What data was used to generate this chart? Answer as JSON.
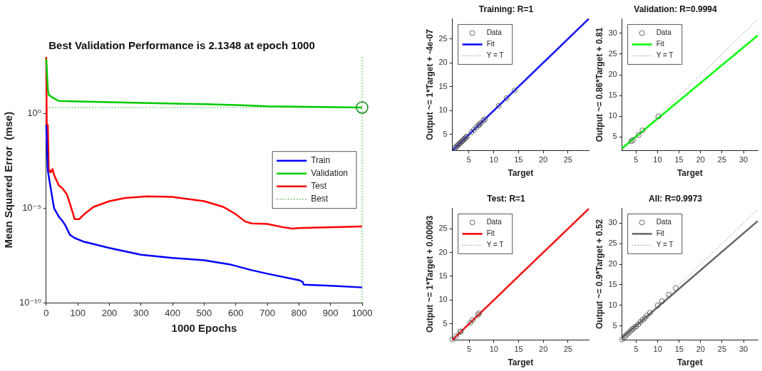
{
  "chart_data": [
    {
      "type": "line",
      "title": "Best Validation Performance is 2.1348 at epoch 1000",
      "xlabel": "1000 Epochs",
      "ylabel": "Mean Squared Error  (mse)",
      "log": "y",
      "xlim": [
        0,
        1000
      ],
      "xticks": [
        0,
        100,
        200,
        300,
        400,
        500,
        600,
        700,
        800,
        900,
        1000
      ],
      "ylim": [
        1e-10,
        1000
      ],
      "yticks": [
        {
          "value": 1e-10,
          "label": "10⁻¹⁰"
        },
        {
          "value": 1e-05,
          "label": "10⁻⁵"
        },
        {
          "value": 1,
          "label": "10⁰"
        }
      ],
      "legend": "right",
      "ref_lines": [
        {
          "axis": "y",
          "value": 2.1348,
          "color": "#22aa22",
          "line_style": "dotted"
        },
        {
          "axis": "x",
          "value": 1000,
          "color": "#22aa22",
          "line_style": "dotted"
        }
      ],
      "series": [
        {
          "name": "Train",
          "color": "#0000ff",
          "marker": "none",
          "x": [
            0,
            5,
            10,
            20,
            25,
            40,
            50,
            60,
            75,
            90,
            120,
            200,
            300,
            400,
            500,
            580,
            650,
            700,
            800,
            812,
            815,
            900,
            1000
          ],
          "values": [
            0.25,
            0.001,
            0.0003,
            3e-05,
            1e-05,
            3.6e-06,
            2.3e-06,
            1.3e-06,
            4e-07,
            2.7e-07,
            1.7e-07,
            8e-08,
            3.5e-08,
            2.4e-08,
            1.8e-08,
            1.1e-08,
            5.4e-09,
            3.5e-09,
            1.6e-09,
            1.3e-09,
            9.3e-10,
            8.1e-10,
            6.6e-10
          ]
        },
        {
          "name": "Validation",
          "color": "#00cc00",
          "marker": "none",
          "x": [
            0,
            5,
            8,
            20,
            40,
            100,
            300,
            500,
            600,
            700,
            1000
          ],
          "values": [
            800,
            20,
            10,
            7.2,
            4.7,
            4.4,
            3.7,
            3.2,
            2.9,
            2.5,
            2.1348
          ]
        },
        {
          "name": "Test",
          "color": "#ff0000",
          "marker": "none",
          "x": [
            0,
            2,
            5,
            8,
            12,
            15,
            20,
            25,
            30,
            40,
            50,
            65,
            75,
            90,
            105,
            120,
            150,
            200,
            250,
            320,
            400,
            500,
            560,
            600,
            630,
            650,
            700,
            750,
            780,
            800,
            1000
          ],
          "values": [
            1000,
            0.045,
            0.25,
            0.0008,
            0.001,
            0.0008,
            0.0012,
            0.00058,
            0.00037,
            0.00016,
            0.00012,
            5.7e-05,
            1.8e-05,
            2.7e-06,
            2.7e-06,
            4.9e-06,
            1.2e-05,
            2.4e-05,
            3.5e-05,
            4.3e-05,
            4e-05,
            2.4e-05,
            1.2e-05,
            4.9e-06,
            2e-06,
            1.6e-06,
            1.5e-06,
            1e-06,
            8.5e-07,
            9e-07,
            1.1e-06
          ]
        },
        {
          "name": "Best",
          "type": "scatter",
          "color": "#118811",
          "marker": "circle",
          "line_style": "dotted",
          "x": [
            1000
          ],
          "values": [
            2.1348
          ]
        }
      ]
    },
    {
      "type": "scatter",
      "title": "Training: R=1",
      "xlabel": "Target",
      "ylabel": "Output ~= 1*Target + -4e-07",
      "xlim": [
        1.65,
        29.2
      ],
      "xticks": [
        5,
        10,
        15,
        20,
        25
      ],
      "ylim": [
        1.65,
        29.2
      ],
      "yticks": [
        5,
        10,
        15,
        20,
        25
      ],
      "legend": "top left",
      "series": [
        {
          "name": "Data",
          "color": "#444444",
          "marker": "circle",
          "x": [
            2.2,
            2.4,
            2.6,
            2.8,
            3.0,
            3.2,
            3.4,
            3.6,
            3.8,
            4.0,
            4.2,
            4.4,
            4.6,
            5.5,
            6.0,
            6.5,
            6.9,
            7.1,
            7.4,
            7.9,
            8.2,
            11.0,
            12.6,
            14.2
          ],
          "values": [
            2.2,
            2.4,
            2.6,
            2.8,
            3.0,
            3.2,
            3.4,
            3.6,
            3.8,
            4.0,
            4.2,
            4.4,
            4.6,
            5.5,
            6.0,
            6.5,
            6.9,
            7.1,
            7.4,
            7.9,
            8.2,
            11.0,
            12.6,
            14.2
          ]
        },
        {
          "name": "Fit",
          "type": "line",
          "color": "#0000ff",
          "marker": "none",
          "x": [
            1.7,
            29.2
          ],
          "values": [
            1.7,
            29.2
          ]
        },
        {
          "name": "Y = T",
          "type": "line",
          "color": "#888888",
          "marker": "none",
          "line_style": "dotted",
          "x": [
            1.7,
            29.2
          ],
          "values": [
            1.7,
            29.2
          ]
        }
      ]
    },
    {
      "type": "scatter",
      "title": "Validation: R=0.9994",
      "xlabel": "Target",
      "ylabel": "Output ~= 0.86*Target + 0.81",
      "xlim": [
        1.75,
        33.3
      ],
      "xticks": [
        5,
        10,
        15,
        20,
        25,
        30
      ],
      "ylim": [
        1.75,
        33.5
      ],
      "yticks": [
        5,
        10,
        15,
        20,
        25,
        30
      ],
      "legend": "top left",
      "series": [
        {
          "name": "Data",
          "color": "#444444",
          "marker": "circle",
          "x": [
            3.9,
            4.3,
            5.6,
            6.5,
            10.2
          ],
          "values": [
            4.0,
            4.3,
            5.5,
            6.6,
            10.0
          ]
        },
        {
          "name": "Fit",
          "type": "line",
          "color": "#00ff00",
          "marker": "none",
          "x": [
            1.75,
            33.3
          ],
          "values": [
            2.3,
            29.5
          ]
        },
        {
          "name": "Y = T",
          "type": "line",
          "color": "#888888",
          "marker": "none",
          "line_style": "dotted",
          "x": [
            1.8,
            33.3
          ],
          "values": [
            1.8,
            33.3
          ]
        }
      ]
    },
    {
      "type": "scatter",
      "title": "Test: R=1",
      "xlabel": "Target",
      "ylabel": "Output ~= 1*Target + 0.00093",
      "xlim": [
        1.6,
        29.2
      ],
      "xticks": [
        5,
        10,
        15,
        20,
        25
      ],
      "ylim": [
        1.6,
        29.3
      ],
      "yticks": [
        5,
        10,
        15,
        20,
        25
      ],
      "legend": "top left",
      "series": [
        {
          "name": "Data",
          "color": "#444444",
          "marker": "circle",
          "x": [
            1.6,
            2.4,
            3.2,
            3.3,
            5.2,
            5.7,
            6.8,
            7.0
          ],
          "values": [
            1.7,
            2.4,
            3.3,
            3.4,
            5.2,
            5.8,
            6.9,
            7.2
          ]
        },
        {
          "name": "Fit",
          "type": "line",
          "color": "#ff0000",
          "marker": "none",
          "x": [
            1.6,
            29.2
          ],
          "values": [
            1.6,
            29.2
          ]
        },
        {
          "name": "Y = T",
          "type": "line",
          "color": "#888888",
          "marker": "none",
          "line_style": "dotted",
          "x": [
            1.6,
            29.2
          ],
          "values": [
            1.6,
            29.2
          ]
        }
      ]
    },
    {
      "type": "scatter",
      "title": "All: R=0.9973",
      "xlabel": "Target",
      "ylabel": "Output ~= 0.9*Target + 0.52",
      "xlim": [
        1.7,
        33.3
      ],
      "xticks": [
        5,
        10,
        15,
        20,
        25,
        30
      ],
      "ylim": [
        1.6,
        33.6
      ],
      "yticks": [
        5,
        10,
        15,
        20,
        25,
        30
      ],
      "legend": "top left",
      "series": [
        {
          "name": "Data",
          "color": "#444444",
          "marker": "circle",
          "x": [
            1.7,
            2.2,
            2.6,
            3.0,
            3.4,
            3.8,
            4.2,
            4.6,
            5.0,
            5.5,
            6.0,
            6.5,
            7.0,
            7.5,
            8.2,
            10.0,
            11.0,
            12.6,
            14.2
          ],
          "values": [
            1.7,
            2.3,
            2.7,
            3.1,
            3.5,
            3.9,
            4.3,
            4.6,
            4.9,
            5.4,
            6.0,
            6.5,
            6.9,
            7.5,
            8.2,
            10.0,
            11.0,
            12.6,
            14.2
          ]
        },
        {
          "name": "Fit",
          "type": "line",
          "color": "#666666",
          "marker": "none",
          "x": [
            1.7,
            33.3
          ],
          "values": [
            2.1,
            30.5
          ]
        },
        {
          "name": "Y = T",
          "type": "line",
          "color": "#888888",
          "marker": "none",
          "line_style": "dotted",
          "x": [
            1.7,
            33.3
          ],
          "values": [
            1.7,
            33.3
          ]
        }
      ]
    }
  ]
}
